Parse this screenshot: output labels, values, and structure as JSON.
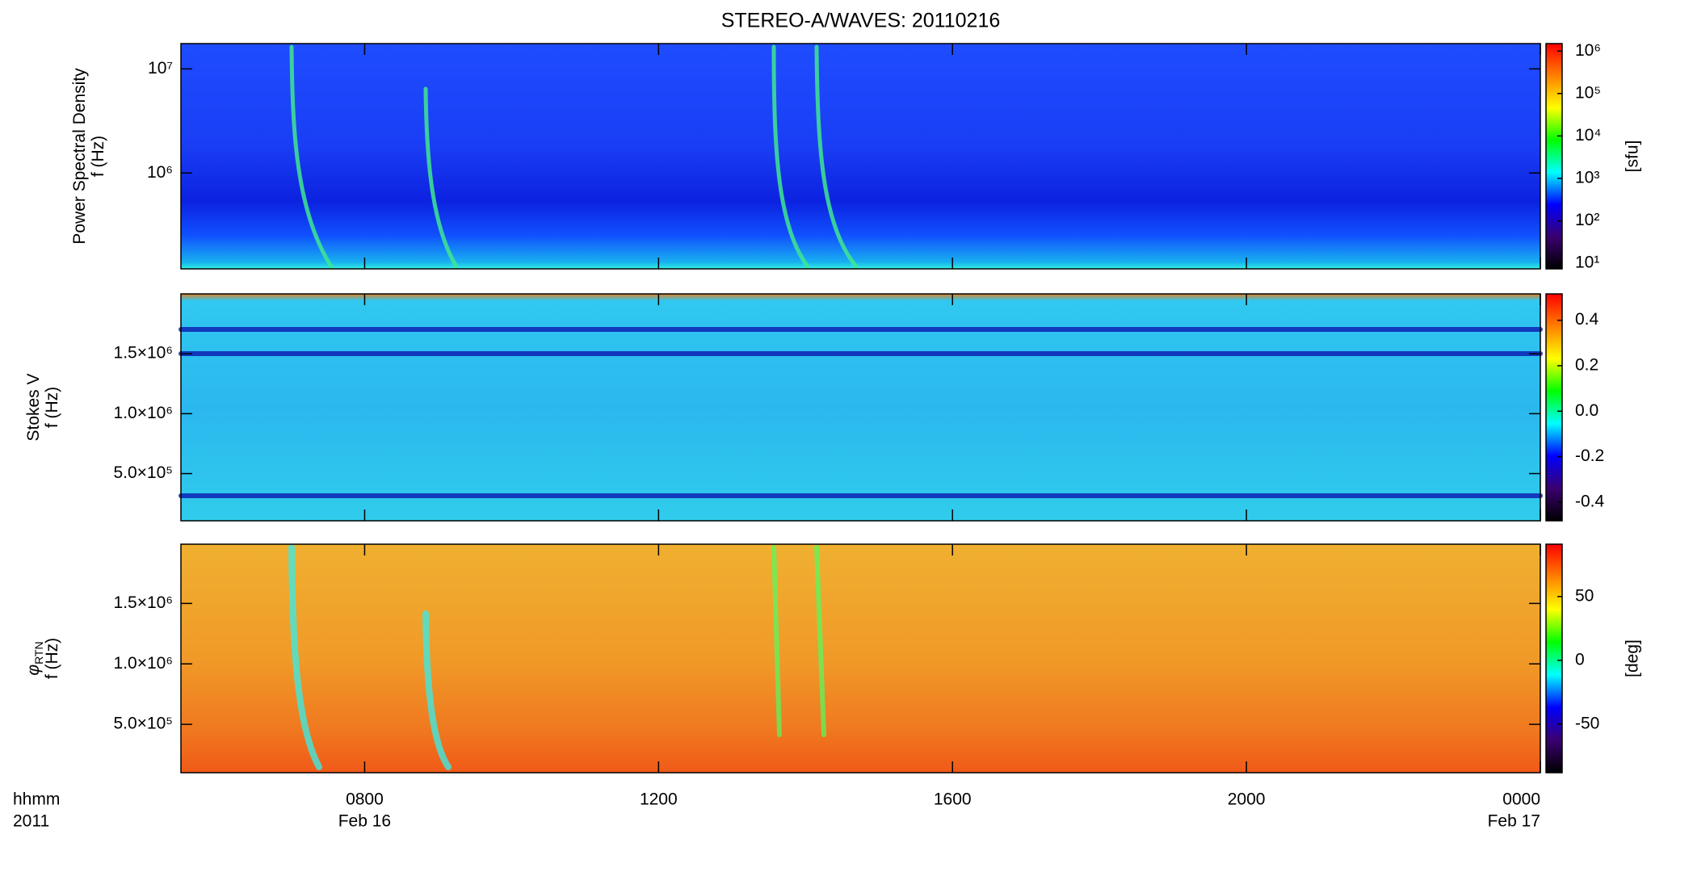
{
  "chart_data": [
    {
      "type": "heatmap",
      "title": "STEREO-A/WAVES: 20110216",
      "ylabel": [
        "Power Spectral Density",
        "f (Hz)"
      ],
      "yscale": "log",
      "ylim": [
        120000,
        17500000
      ],
      "yticks": [
        {
          "value": 1000000,
          "label": "10⁶"
        },
        {
          "value": 10000000,
          "label": "10⁷"
        }
      ],
      "xlim": [
        5.5,
        24
      ],
      "xticks": [
        8,
        12,
        16,
        20,
        24
      ],
      "colorscale": "log",
      "clim": [
        7.4,
        1500000
      ],
      "cticks": [
        {
          "value": 10,
          "label": "10¹"
        },
        {
          "value": 100,
          "label": "10²"
        },
        {
          "value": 1000,
          "label": "10³"
        },
        {
          "value": 10000,
          "label": "10⁴"
        },
        {
          "value": 100000,
          "label": "10⁵"
        },
        {
          "value": 1000000,
          "label": "10⁶"
        }
      ],
      "clabel": "[sfu]",
      "colormap": [
        "#000000",
        "#3a0070",
        "#0000ff",
        "#00ffff",
        "#00ff00",
        "#ffff00",
        "#ff8000",
        "#ff0000"
      ]
    },
    {
      "type": "heatmap",
      "ylabel": [
        "Stokes V",
        "f (Hz)"
      ],
      "yscale": "linear",
      "ylim": [
        106000,
        2000000
      ],
      "yticks": [
        {
          "value": 500000,
          "label": "5.0×10⁵"
        },
        {
          "value": 1000000,
          "label": "1.0×10⁶"
        },
        {
          "value": 1500000,
          "label": "1.5×10⁶"
        }
      ],
      "xlim": [
        5.5,
        24
      ],
      "xticks": [
        8,
        12,
        16,
        20,
        24
      ],
      "colorscale": "linear",
      "clim": [
        -0.482,
        0.516
      ],
      "cticks": [
        -0.4,
        -0.2,
        {
          "value": 0,
          "label": "0.0"
        },
        0.2,
        0.4
      ],
      "colormap": [
        "#000000",
        "#3a0070",
        "#0000ff",
        "#00ffff",
        "#00ff00",
        "#ffff00",
        "#ff8000",
        "#ff0000"
      ]
    },
    {
      "type": "heatmap",
      "ylabel": [
        "φ",
        "f (Hz)"
      ],
      "ylabel_sub": "RTN",
      "yscale": "linear",
      "ylim": [
        100000,
        1990000
      ],
      "yticks": [
        {
          "value": 500000,
          "label": "5.0×10⁵"
        },
        {
          "value": 1000000,
          "label": "1.0×10⁶"
        },
        {
          "value": 1500000,
          "label": "1.5×10⁶"
        }
      ],
      "xlim": [
        5.5,
        24
      ],
      "xticks": [
        {
          "value": 8,
          "label": "0800"
        },
        {
          "value": 12,
          "label": "1200"
        },
        {
          "value": 16,
          "label": "1600"
        },
        {
          "value": 20,
          "label": "2000"
        },
        {
          "value": 24,
          "label": "0000"
        }
      ],
      "date_labels": [
        {
          "value": 8,
          "label": "Feb 16"
        },
        {
          "value": 24,
          "label": "Feb 17"
        }
      ],
      "xlabel": [
        "hhmm",
        "2011"
      ],
      "colorscale": "linear",
      "clim": [
        -88,
        91
      ],
      "cticks": [
        -50,
        0,
        50
      ],
      "clabel": "[deg]",
      "colormap": [
        "#000000",
        "#3a0070",
        "#0000ff",
        "#00ffff",
        "#00ff00",
        "#ffff00",
        "#ff8000",
        "#ff0000"
      ]
    }
  ]
}
